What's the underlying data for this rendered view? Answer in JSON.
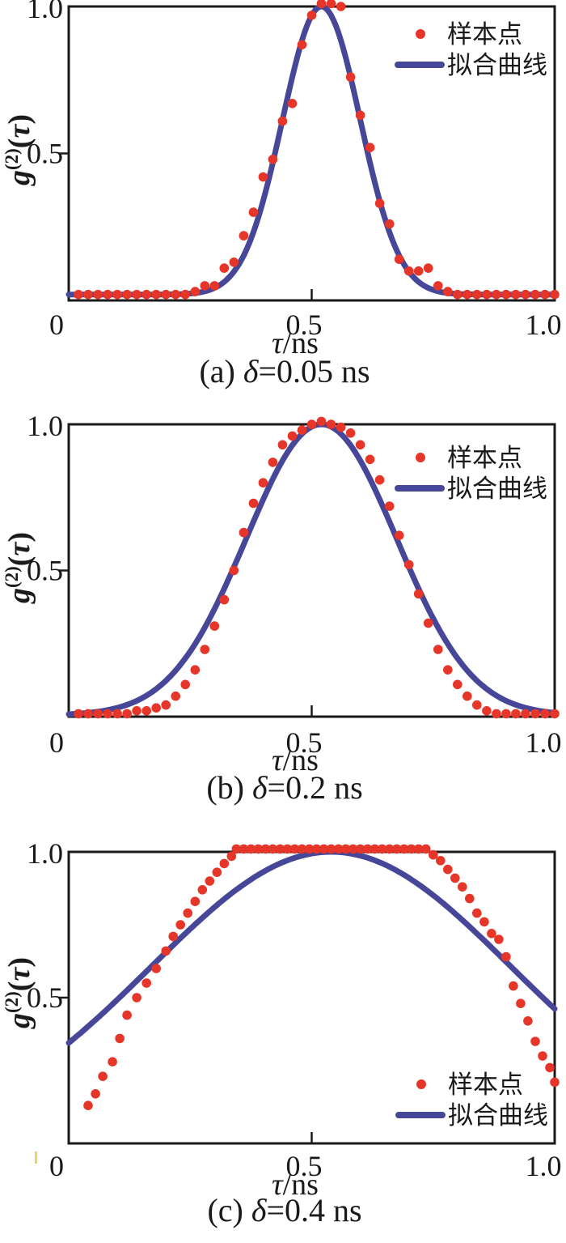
{
  "colors": {
    "sample": "#e63529",
    "fit": "#474799",
    "frame": "#1a1a1a",
    "text": "#1a1a1a",
    "stray_mark": "#f2d262",
    "background": "#ffffff"
  },
  "legend": {
    "sample_label": "样本点",
    "fit_label": "拟合曲线"
  },
  "axes": {
    "xlabel": "τ/ns",
    "ylabel": "g⁽²⁾(τ)",
    "xlabel_parts": [
      {
        "t": "τ",
        "i": true
      },
      {
        "t": "/ns",
        "i": false
      }
    ],
    "ylabel_parts": [
      {
        "t": "g",
        "i": true,
        "sup": false
      },
      {
        "t": "(2)",
        "i": false,
        "sup": true
      },
      {
        "t": "(",
        "i": false,
        "sup": false
      },
      {
        "t": "τ",
        "i": true,
        "sup": false
      },
      {
        "t": ")",
        "i": false,
        "sup": false
      }
    ],
    "xtick_labels": [
      "0",
      "0.5",
      "1.0"
    ],
    "ytick_labels": [
      "0.5",
      "1.0"
    ]
  },
  "chart_data": [
    {
      "type": "scatter+line",
      "title": "(a) δ=0.05 ns",
      "caption_parts": [
        {
          "t": "(a) ",
          "i": false
        },
        {
          "t": "δ",
          "i": true
        },
        {
          "t": "=0.05 ns",
          "i": false
        }
      ],
      "xlabel": "τ/ns",
      "ylabel": "g⁽²⁾(τ)",
      "xlim": [
        0,
        1
      ],
      "ylim": [
        0,
        1
      ],
      "xticks": [
        0,
        0.5,
        1
      ],
      "yticks": [
        0.5,
        1
      ],
      "grid": false,
      "legend_position": "top-right",
      "has_stray_mark": false,
      "series": [
        {
          "name": "样本点",
          "type": "scatter",
          "color": "#e63529",
          "points": [
            [
              0.02,
              0.02
            ],
            [
              0.04,
              0.02
            ],
            [
              0.06,
              0.02
            ],
            [
              0.08,
              0.02
            ],
            [
              0.1,
              0.02
            ],
            [
              0.12,
              0.02
            ],
            [
              0.14,
              0.02
            ],
            [
              0.16,
              0.02
            ],
            [
              0.18,
              0.02
            ],
            [
              0.2,
              0.02
            ],
            [
              0.22,
              0.02
            ],
            [
              0.24,
              0.02
            ],
            [
              0.26,
              0.03
            ],
            [
              0.28,
              0.05
            ],
            [
              0.3,
              0.05
            ],
            [
              0.32,
              0.11
            ],
            [
              0.34,
              0.13
            ],
            [
              0.36,
              0.22
            ],
            [
              0.38,
              0.3
            ],
            [
              0.4,
              0.42
            ],
            [
              0.42,
              0.48
            ],
            [
              0.44,
              0.61
            ],
            [
              0.46,
              0.67
            ],
            [
              0.48,
              0.87
            ],
            [
              0.5,
              0.97
            ],
            [
              0.52,
              1.01
            ],
            [
              0.54,
              1.01
            ],
            [
              0.56,
              1.0
            ],
            [
              0.58,
              0.76
            ],
            [
              0.6,
              0.63
            ],
            [
              0.62,
              0.52
            ],
            [
              0.64,
              0.33
            ],
            [
              0.66,
              0.26
            ],
            [
              0.68,
              0.14
            ],
            [
              0.7,
              0.1
            ],
            [
              0.72,
              0.1
            ],
            [
              0.74,
              0.11
            ],
            [
              0.76,
              0.05
            ],
            [
              0.78,
              0.03
            ],
            [
              0.8,
              0.02
            ],
            [
              0.82,
              0.02
            ],
            [
              0.84,
              0.02
            ],
            [
              0.86,
              0.02
            ],
            [
              0.88,
              0.02
            ],
            [
              0.9,
              0.02
            ],
            [
              0.92,
              0.02
            ],
            [
              0.94,
              0.02
            ],
            [
              0.96,
              0.02
            ],
            [
              0.98,
              0.02
            ],
            [
              1.0,
              0.02
            ]
          ]
        },
        {
          "name": "拟合曲线",
          "type": "line",
          "color": "#474799",
          "model": "gaussian",
          "params": {
            "mu": 0.52,
            "sigma": 0.08,
            "baseline": 0.02,
            "amplitude": 0.98
          }
        }
      ]
    },
    {
      "type": "scatter+line",
      "title": "(b) δ=0.2 ns",
      "caption_parts": [
        {
          "t": "(b) ",
          "i": false
        },
        {
          "t": "δ",
          "i": true
        },
        {
          "t": "=0.2 ns",
          "i": false
        }
      ],
      "xlabel": "τ/ns",
      "ylabel": "g⁽²⁾(τ)",
      "xlim": [
        0,
        1
      ],
      "ylim": [
        0,
        1
      ],
      "xticks": [
        0,
        0.5,
        1
      ],
      "yticks": [
        0.5,
        1
      ],
      "grid": false,
      "legend_position": "top-right",
      "has_stray_mark": false,
      "series": [
        {
          "name": "样本点",
          "type": "scatter",
          "color": "#e63529",
          "points": [
            [
              0.02,
              0.01
            ],
            [
              0.04,
              0.01
            ],
            [
              0.06,
              0.01
            ],
            [
              0.08,
              0.01
            ],
            [
              0.1,
              0.01
            ],
            [
              0.12,
              0.01
            ],
            [
              0.14,
              0.02
            ],
            [
              0.16,
              0.02
            ],
            [
              0.18,
              0.03
            ],
            [
              0.2,
              0.04
            ],
            [
              0.22,
              0.07
            ],
            [
              0.24,
              0.11
            ],
            [
              0.26,
              0.16
            ],
            [
              0.28,
              0.23
            ],
            [
              0.3,
              0.31
            ],
            [
              0.32,
              0.4
            ],
            [
              0.34,
              0.5
            ],
            [
              0.36,
              0.63
            ],
            [
              0.38,
              0.73
            ],
            [
              0.4,
              0.8
            ],
            [
              0.42,
              0.87
            ],
            [
              0.44,
              0.93
            ],
            [
              0.46,
              0.96
            ],
            [
              0.48,
              0.98
            ],
            [
              0.5,
              1.0
            ],
            [
              0.52,
              1.01
            ],
            [
              0.54,
              1.0
            ],
            [
              0.56,
              0.99
            ],
            [
              0.58,
              0.97
            ],
            [
              0.6,
              0.93
            ],
            [
              0.62,
              0.88
            ],
            [
              0.64,
              0.81
            ],
            [
              0.66,
              0.72
            ],
            [
              0.68,
              0.62
            ],
            [
              0.7,
              0.52
            ],
            [
              0.72,
              0.42
            ],
            [
              0.74,
              0.32
            ],
            [
              0.76,
              0.23
            ],
            [
              0.78,
              0.16
            ],
            [
              0.8,
              0.11
            ],
            [
              0.82,
              0.07
            ],
            [
              0.84,
              0.04
            ],
            [
              0.86,
              0.02
            ],
            [
              0.88,
              0.01
            ],
            [
              0.9,
              0.01
            ],
            [
              0.92,
              0.01
            ],
            [
              0.94,
              0.01
            ],
            [
              0.96,
              0.01
            ],
            [
              0.98,
              0.01
            ],
            [
              1.0,
              0.01
            ]
          ]
        },
        {
          "name": "拟合曲线",
          "type": "line",
          "color": "#474799",
          "model": "gaussian",
          "params": {
            "mu": 0.52,
            "sigma": 0.155,
            "baseline": 0.005,
            "amplitude": 0.995
          }
        }
      ]
    },
    {
      "type": "scatter+line",
      "title": "(c) δ=0.4 ns",
      "caption_parts": [
        {
          "t": "(c) ",
          "i": false
        },
        {
          "t": "δ",
          "i": true
        },
        {
          "t": "=0.4 ns",
          "i": false
        }
      ],
      "xlabel": "τ/ns",
      "ylabel": "g⁽²⁾(τ)",
      "xlim": [
        0,
        1
      ],
      "ylim": [
        0,
        1
      ],
      "xticks": [
        0,
        0.5,
        1
      ],
      "yticks": [
        0.5,
        1
      ],
      "grid": false,
      "legend_position": "bottom-right",
      "has_stray_mark": true,
      "series": [
        {
          "name": "样本点",
          "type": "scatter",
          "color": "#e63529",
          "points": [
            [
              0.04,
              0.13
            ],
            [
              0.055,
              0.17
            ],
            [
              0.07,
              0.23
            ],
            [
              0.09,
              0.28
            ],
            [
              0.105,
              0.36
            ],
            [
              0.12,
              0.44
            ],
            [
              0.14,
              0.5
            ],
            [
              0.16,
              0.55
            ],
            [
              0.18,
              0.6
            ],
            [
              0.2,
              0.66
            ],
            [
              0.215,
              0.71
            ],
            [
              0.23,
              0.75
            ],
            [
              0.245,
              0.79
            ],
            [
              0.26,
              0.83
            ],
            [
              0.275,
              0.87
            ],
            [
              0.29,
              0.9
            ],
            [
              0.305,
              0.93
            ],
            [
              0.32,
              0.96
            ],
            [
              0.335,
              0.985
            ],
            [
              0.345,
              1.01
            ],
            [
              0.36,
              1.01
            ],
            [
              0.375,
              1.01
            ],
            [
              0.39,
              1.01
            ],
            [
              0.405,
              1.01
            ],
            [
              0.42,
              1.01
            ],
            [
              0.435,
              1.01
            ],
            [
              0.45,
              1.01
            ],
            [
              0.465,
              1.01
            ],
            [
              0.48,
              1.01
            ],
            [
              0.495,
              1.01
            ],
            [
              0.51,
              1.01
            ],
            [
              0.525,
              1.01
            ],
            [
              0.54,
              1.01
            ],
            [
              0.555,
              1.01
            ],
            [
              0.57,
              1.01
            ],
            [
              0.585,
              1.01
            ],
            [
              0.6,
              1.01
            ],
            [
              0.615,
              1.01
            ],
            [
              0.63,
              1.01
            ],
            [
              0.645,
              1.01
            ],
            [
              0.66,
              1.01
            ],
            [
              0.675,
              1.01
            ],
            [
              0.69,
              1.01
            ],
            [
              0.705,
              1.01
            ],
            [
              0.72,
              1.01
            ],
            [
              0.735,
              1.01
            ],
            [
              0.75,
              0.99
            ],
            [
              0.765,
              0.97
            ],
            [
              0.78,
              0.94
            ],
            [
              0.795,
              0.91
            ],
            [
              0.81,
              0.88
            ],
            [
              0.825,
              0.84
            ],
            [
              0.84,
              0.79
            ],
            [
              0.855,
              0.76
            ],
            [
              0.87,
              0.72
            ],
            [
              0.885,
              0.7
            ],
            [
              0.9,
              0.64
            ],
            [
              0.915,
              0.54
            ],
            [
              0.93,
              0.48
            ],
            [
              0.945,
              0.42
            ],
            [
              0.96,
              0.35
            ],
            [
              0.975,
              0.3
            ],
            [
              0.99,
              0.26
            ],
            [
              1.0,
              0.21
            ]
          ]
        },
        {
          "name": "拟合曲线",
          "type": "line",
          "color": "#474799",
          "model": "gaussian",
          "params": {
            "mu": 0.54,
            "sigma": 0.37,
            "baseline": 0.0,
            "amplitude": 1.0
          }
        }
      ]
    }
  ]
}
